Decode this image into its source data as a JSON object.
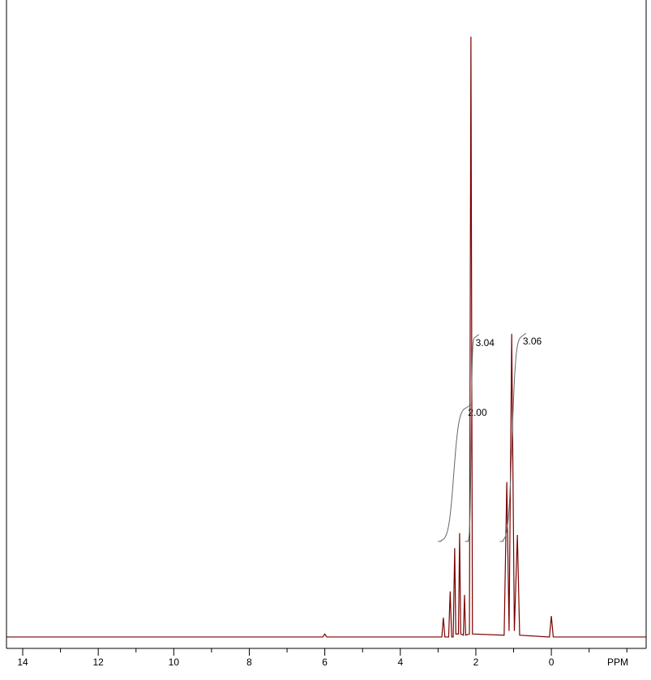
{
  "chart_data": {
    "type": "line",
    "x": [
      14.43,
      6.05,
      6.0,
      5.95,
      3.0,
      2.9,
      2.86,
      2.82,
      2.72,
      2.68,
      2.64,
      2.6,
      2.56,
      2.53,
      2.46,
      2.43,
      2.4,
      2.33,
      2.3,
      2.27,
      2.17,
      2.13,
      2.09,
      1.25,
      1.18,
      1.12,
      1.05,
      0.98,
      0.9,
      0.84,
      0.05,
      0,
      -0.05,
      -2.51
    ],
    "series": [
      {
        "color": "#7a0000",
        "values": [
          0,
          0,
          0.5,
          0,
          0,
          0,
          3.2,
          0,
          0,
          7.6,
          0,
          0,
          14.8,
          0.5,
          0.5,
          17.3,
          0.5,
          0.3,
          7,
          0.3,
          0.5,
          100,
          0.5,
          0.3,
          25.8,
          1,
          50.5,
          1,
          17,
          0.3,
          0,
          3.5,
          0,
          0
        ]
      }
    ],
    "xlim": [
      14.43,
      -2.51
    ],
    "ylim": [
      -1.9,
      106.1
    ],
    "xticks": [
      14,
      12,
      10,
      8,
      6,
      4,
      2,
      0
    ],
    "xminorticks": [
      13,
      11,
      9,
      7,
      5,
      3,
      1,
      -1,
      -2
    ],
    "xlabel": "PPM",
    "integrals": [
      {
        "value": 2.0,
        "label": "2.00",
        "range": [
          2.92,
          2.25
        ]
      },
      {
        "value": 3.04,
        "label": "3.04",
        "range": [
          2.2,
          2.05
        ]
      },
      {
        "value": 3.06,
        "label": "3.06",
        "range": [
          1.28,
          0.8
        ]
      }
    ],
    "integral_color": "#666666"
  }
}
